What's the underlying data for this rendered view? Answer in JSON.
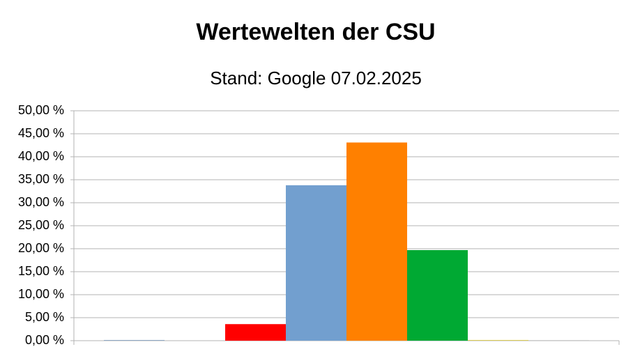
{
  "chart_data": {
    "type": "bar",
    "title": "Wertewelten der CSU",
    "subtitle": "Stand: Google 07.02.2025",
    "categories": [
      null
    ],
    "series": [
      {
        "color": "#8fa9c6",
        "values": [
          0.15
        ]
      },
      {
        "color": "#004586",
        "values": [
          0
        ]
      },
      {
        "color": "#ff0000",
        "values": [
          3.6
        ]
      },
      {
        "color": "#729fcf",
        "values": [
          33.8
        ]
      },
      {
        "color": "#ff8000",
        "values": [
          43.1
        ]
      },
      {
        "color": "#00a933",
        "values": [
          19.7
        ]
      },
      {
        "color": "#c9b400",
        "values": [
          0.1
        ]
      },
      {
        "color": "#999999",
        "values": [
          0.05
        ]
      }
    ],
    "ylim": [
      0,
      50
    ],
    "yticks": [
      {
        "value": 0,
        "label": "0,00 %"
      },
      {
        "value": 5,
        "label": "5,00 %"
      },
      {
        "value": 10,
        "label": "10,00 %"
      },
      {
        "value": 15,
        "label": "15,00 %"
      },
      {
        "value": 20,
        "label": "20,00 %"
      },
      {
        "value": 25,
        "label": "25,00 %"
      },
      {
        "value": 30,
        "label": "30,00 %"
      },
      {
        "value": 35,
        "label": "35,00 %"
      },
      {
        "value": 40,
        "label": "40,00 %"
      },
      {
        "value": 45,
        "label": "45,00 %"
      },
      {
        "value": 50,
        "label": "50,00 %"
      }
    ],
    "grid": true
  }
}
